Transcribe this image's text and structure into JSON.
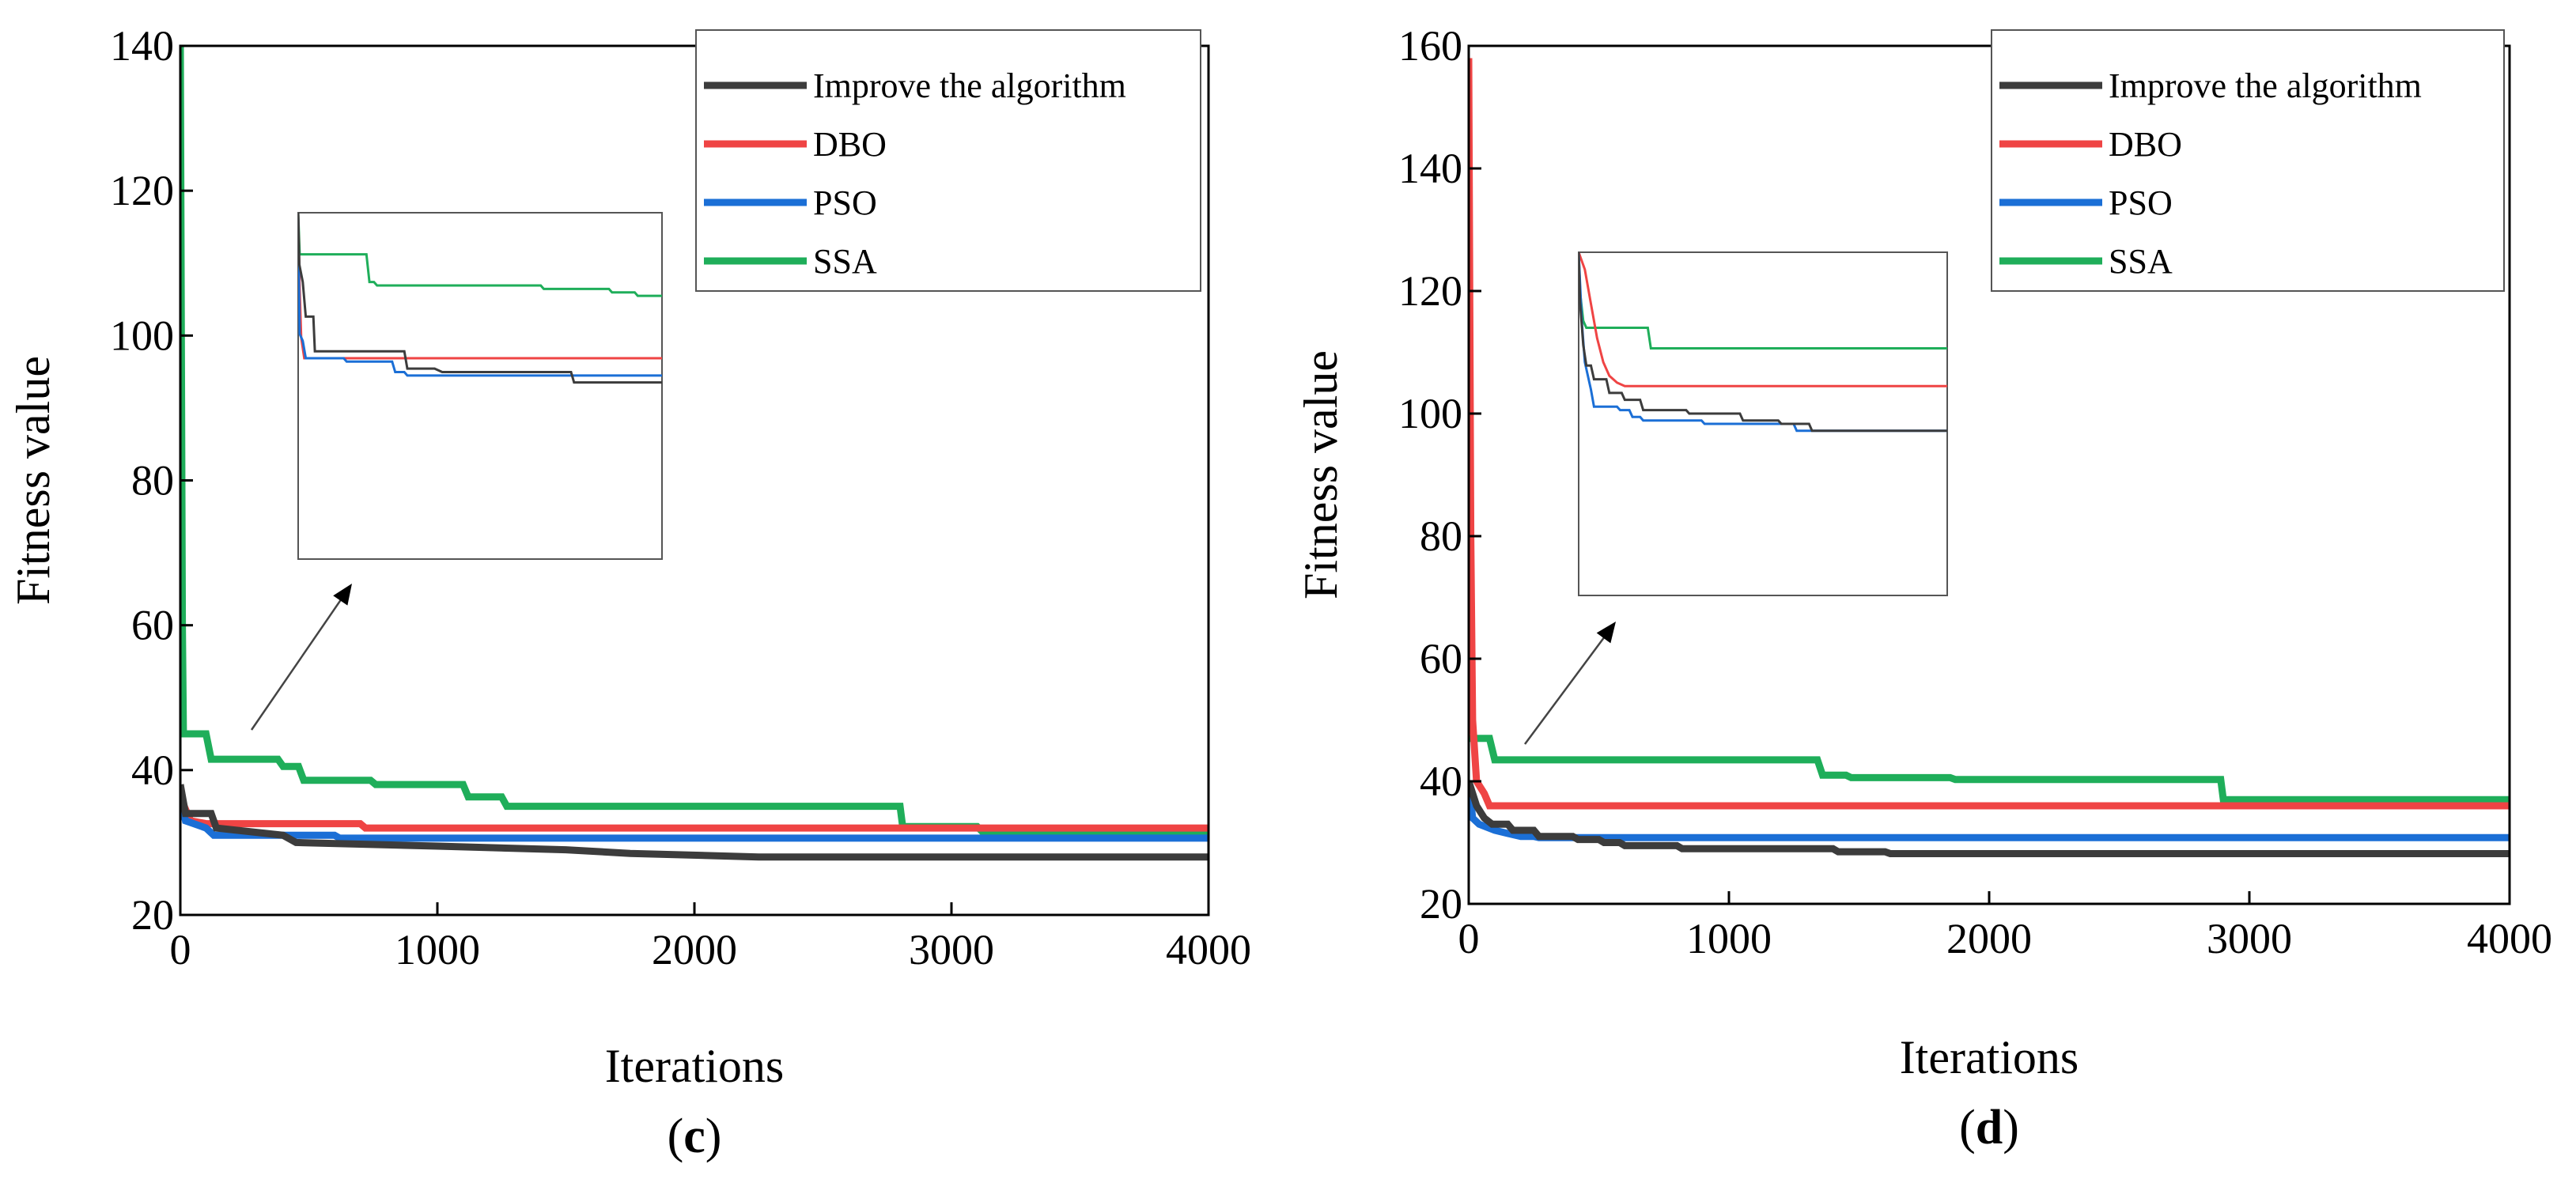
{
  "figure": {
    "background": "#ffffff"
  },
  "chart_data": [
    {
      "type": "line",
      "panel_label": {
        "open": "(",
        "letter": "c",
        "close": ")"
      },
      "xlabel": "Iterations",
      "ylabel": "Fitness value",
      "xlim": [
        0,
        4000
      ],
      "ylim": [
        20,
        140
      ],
      "xticks": [
        0,
        1000,
        2000,
        3000,
        4000
      ],
      "yticks": [
        20,
        40,
        60,
        80,
        100,
        120,
        140
      ],
      "grid": false,
      "legend": "top-right",
      "series": [
        {
          "name": "Improve the algorithm",
          "color": "#3c3c3c",
          "points": [
            [
              0,
              38
            ],
            [
              20,
              34
            ],
            [
              120,
              34
            ],
            [
              140,
              32
            ],
            [
              400,
              31
            ],
            [
              450,
              30
            ],
            [
              1000,
              29.5
            ],
            [
              1500,
              29
            ],
            [
              1750,
              28.5
            ],
            [
              2250,
              28
            ],
            [
              4000,
              28
            ]
          ]
        },
        {
          "name": "DBO",
          "color": "#ef4444",
          "points": [
            [
              0,
              37
            ],
            [
              15,
              35
            ],
            [
              40,
              33
            ],
            [
              100,
              32.6
            ],
            [
              700,
              32.6
            ],
            [
              720,
              32
            ],
            [
              4000,
              32
            ]
          ]
        },
        {
          "name": "PSO",
          "color": "#1b6fd6",
          "points": [
            [
              0,
              36
            ],
            [
              20,
              33
            ],
            [
              100,
              32
            ],
            [
              130,
              31
            ],
            [
              600,
              31
            ],
            [
              620,
              30.6
            ],
            [
              4000,
              30.6
            ]
          ]
        },
        {
          "name": "SSA",
          "color": "#1fae5a",
          "points": [
            [
              0,
              140
            ],
            [
              4,
              100
            ],
            [
              8,
              60
            ],
            [
              12,
              45
            ],
            [
              100,
              45
            ],
            [
              120,
              41.5
            ],
            [
              380,
              41.5
            ],
            [
              400,
              40.5
            ],
            [
              460,
              40.5
            ],
            [
              480,
              38.6
            ],
            [
              740,
              38.6
            ],
            [
              760,
              38
            ],
            [
              1100,
              38
            ],
            [
              1120,
              36.3
            ],
            [
              1250,
              36.3
            ],
            [
              1270,
              35
            ],
            [
              2800,
              35
            ],
            [
              2810,
              32.2
            ],
            [
              3100,
              32.2
            ],
            [
              3120,
              31.5
            ],
            [
              4000,
              31.5
            ]
          ]
        }
      ],
      "inset": {
        "series": [
          {
            "name": "Improve the algorithm",
            "color": "#3c3c3c",
            "points": [
              [
                0,
                100
              ],
              [
                0.8,
                85
              ],
              [
                3,
                80
              ],
              [
                5,
                70
              ],
              [
                10,
                70
              ],
              [
                11,
                60
              ],
              [
                70,
                60
              ],
              [
                72,
                55
              ],
              [
                90,
                55
              ],
              [
                95,
                54
              ],
              [
                180,
                54
              ],
              [
                182,
                51
              ],
              [
                240,
                51
              ]
            ]
          },
          {
            "name": "DBO",
            "color": "#ef4444",
            "points": [
              [
                0,
                100
              ],
              [
                1,
                78
              ],
              [
                2,
                64
              ],
              [
                4,
                58
              ],
              [
                240,
                58
              ]
            ]
          },
          {
            "name": "PSO",
            "color": "#1b6fd6",
            "points": [
              [
                0,
                100
              ],
              [
                0.5,
                80
              ],
              [
                1,
                65
              ],
              [
                3,
                63
              ],
              [
                5,
                58
              ],
              [
                30,
                58
              ],
              [
                32,
                57
              ],
              [
                62,
                57
              ],
              [
                64,
                54
              ],
              [
                70,
                54
              ],
              [
                72,
                53
              ],
              [
                240,
                53
              ]
            ]
          },
          {
            "name": "SSA",
            "color": "#1fae5a",
            "points": [
              [
                0,
                100
              ],
              [
                1,
                88
              ],
              [
                45,
                88
              ],
              [
                47,
                80
              ],
              [
                50,
                80
              ],
              [
                52,
                79
              ],
              [
                160,
                79
              ],
              [
                162,
                78
              ],
              [
                205,
                78
              ],
              [
                207,
                77
              ],
              [
                222,
                77
              ],
              [
                224,
                76
              ],
              [
                240,
                76
              ]
            ]
          }
        ]
      }
    },
    {
      "type": "line",
      "panel_label": {
        "open": "(",
        "letter": "d",
        "close": ")"
      },
      "xlabel": "Iterations",
      "ylabel": "Fitness value",
      "xlim": [
        0,
        4000
      ],
      "ylim": [
        20,
        160
      ],
      "xticks": [
        0,
        1000,
        2000,
        3000,
        4000
      ],
      "yticks": [
        20,
        40,
        60,
        80,
        100,
        120,
        140,
        160
      ],
      "grid": false,
      "legend": "top-right",
      "series": [
        {
          "name": "Improve the algorithm",
          "color": "#3c3c3c",
          "points": [
            [
              0,
              40
            ],
            [
              30,
              36
            ],
            [
              60,
              34
            ],
            [
              90,
              33
            ],
            [
              150,
              33
            ],
            [
              170,
              32
            ],
            [
              250,
              32
            ],
            [
              270,
              31
            ],
            [
              400,
              31
            ],
            [
              420,
              30.5
            ],
            [
              500,
              30.5
            ],
            [
              520,
              30
            ],
            [
              580,
              30
            ],
            [
              600,
              29.5
            ],
            [
              800,
              29.5
            ],
            [
              820,
              29
            ],
            [
              1400,
              29
            ],
            [
              1420,
              28.5
            ],
            [
              1600,
              28.5
            ],
            [
              1620,
              28.2
            ],
            [
              4000,
              28.2
            ]
          ]
        },
        {
          "name": "DBO",
          "color": "#ef4444",
          "points": [
            [
              0,
              158
            ],
            [
              8,
              80
            ],
            [
              15,
              50
            ],
            [
              30,
              40
            ],
            [
              60,
              38
            ],
            [
              80,
              36
            ],
            [
              4000,
              36
            ]
          ]
        },
        {
          "name": "PSO",
          "color": "#1b6fd6",
          "points": [
            [
              0,
              40
            ],
            [
              15,
              34
            ],
            [
              40,
              33
            ],
            [
              100,
              32
            ],
            [
              200,
              31
            ],
            [
              250,
              31
            ],
            [
              270,
              30.8
            ],
            [
              4000,
              30.8
            ]
          ]
        },
        {
          "name": "SSA",
          "color": "#1fae5a",
          "points": [
            [
              0,
              47
            ],
            [
              80,
              47
            ],
            [
              100,
              43.5
            ],
            [
              1340,
              43.5
            ],
            [
              1360,
              41
            ],
            [
              1450,
              41
            ],
            [
              1470,
              40.6
            ],
            [
              1850,
              40.6
            ],
            [
              1870,
              40.3
            ],
            [
              2890,
              40.3
            ],
            [
              2900,
              37
            ],
            [
              4000,
              37
            ]
          ]
        }
      ],
      "inset": {
        "series": [
          {
            "name": "Improve the algorithm",
            "color": "#3c3c3c",
            "points": [
              [
                0,
                100
              ],
              [
                1,
                85
              ],
              [
                3,
                73
              ],
              [
                5,
                67
              ],
              [
                8,
                67
              ],
              [
                10,
                63
              ],
              [
                18,
                63
              ],
              [
                20,
                59
              ],
              [
                28,
                59
              ],
              [
                30,
                57
              ],
              [
                40,
                57
              ],
              [
                42,
                54
              ],
              [
                70,
                54
              ],
              [
                72,
                53
              ],
              [
                105,
                53
              ],
              [
                107,
                51
              ],
              [
                130,
                51
              ],
              [
                132,
                50
              ],
              [
                150,
                50
              ],
              [
                152,
                48
              ],
              [
                240,
                48
              ]
            ]
          },
          {
            "name": "DBO",
            "color": "#ef4444",
            "points": [
              [
                0,
                100
              ],
              [
                4,
                95
              ],
              [
                8,
                85
              ],
              [
                12,
                75
              ],
              [
                16,
                68
              ],
              [
                20,
                64
              ],
              [
                25,
                62
              ],
              [
                30,
                61
              ],
              [
                240,
                61
              ]
            ]
          },
          {
            "name": "PSO",
            "color": "#1b6fd6",
            "points": [
              [
                0,
                100
              ],
              [
                2,
                80
              ],
              [
                4,
                68
              ],
              [
                8,
                60
              ],
              [
                10,
                55
              ],
              [
                25,
                55
              ],
              [
                27,
                54
              ],
              [
                33,
                54
              ],
              [
                35,
                52
              ],
              [
                40,
                52
              ],
              [
                42,
                51
              ],
              [
                80,
                51
              ],
              [
                82,
                50
              ],
              [
                140,
                50
              ],
              [
                142,
                48
              ],
              [
                240,
                48
              ]
            ]
          },
          {
            "name": "SSA",
            "color": "#1fae5a",
            "points": [
              [
                0,
                100
              ],
              [
                1,
                88
              ],
              [
                3,
                80
              ],
              [
                5,
                78
              ],
              [
                45,
                78
              ],
              [
                47,
                72
              ],
              [
                240,
                72
              ]
            ]
          }
        ]
      }
    }
  ]
}
